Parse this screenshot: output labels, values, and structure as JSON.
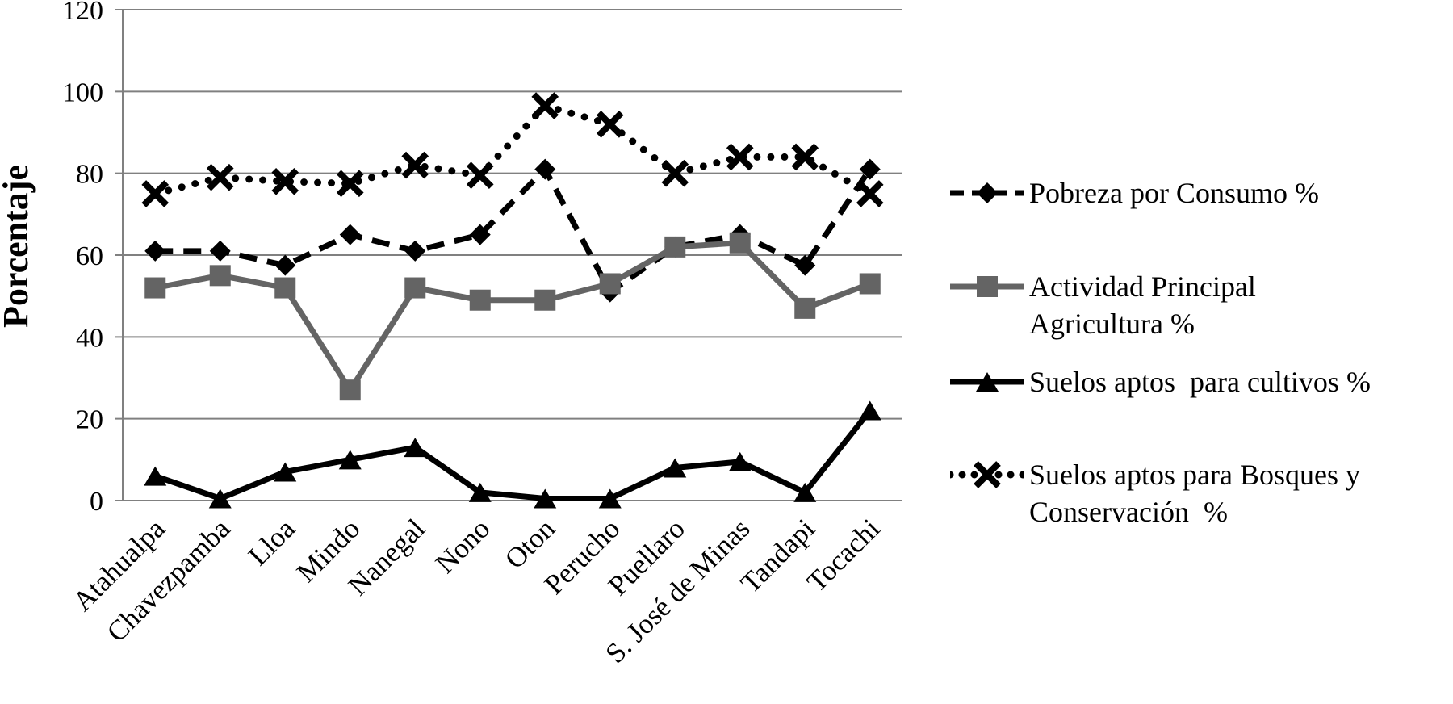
{
  "chart_data": {
    "type": "line",
    "title": "",
    "xlabel": "",
    "ylabel": "Porcentaje",
    "ylim": [
      0,
      120
    ],
    "yticks": [
      0,
      20,
      40,
      60,
      80,
      100,
      120
    ],
    "grid": true,
    "legend_position": "right",
    "categories": [
      "Atahualpa",
      "Chavezpamba",
      "Lloa",
      "Mindo",
      "Nanegal",
      "Nono",
      "Oton",
      "Perucho",
      "Puellaro",
      "S. José de Minas",
      "Tandapi",
      "Tocachi"
    ],
    "series": [
      {
        "name": "Pobreza por Consumo %",
        "legend_lines": [
          "Pobreza por Consumo %"
        ],
        "marker": "diamond",
        "line": "dashed",
        "color": "#000000",
        "values": [
          61,
          61,
          57.5,
          65,
          61,
          65,
          81,
          51,
          62,
          65,
          57.5,
          81
        ]
      },
      {
        "name": "Actividad Principal Agricultura %",
        "legend_lines": [
          "Actividad Principal",
          "Agricultura %"
        ],
        "marker": "square",
        "line": "solid",
        "color": "#646464",
        "values": [
          52,
          55,
          52,
          27,
          52,
          49,
          49,
          53,
          62,
          63,
          47,
          53
        ]
      },
      {
        "name": "Suelos aptos  para cultivos %",
        "legend_lines": [
          "Suelos aptos  para cultivos %"
        ],
        "marker": "triangle",
        "line": "solid",
        "color": "#000000",
        "values": [
          6,
          0.5,
          7,
          10,
          13,
          2,
          0.5,
          0.5,
          8,
          9.5,
          2,
          22
        ]
      },
      {
        "name": "Suelos aptos para Bosques y Conservación  %",
        "legend_lines": [
          "Suelos aptos para Bosques y",
          "Conservación  %"
        ],
        "marker": "x",
        "line": "dotted",
        "color": "#000000",
        "values": [
          75,
          79,
          78,
          77.5,
          82,
          79.5,
          96.5,
          92,
          80,
          84,
          84,
          75
        ]
      }
    ],
    "grid_color": "#808080"
  }
}
